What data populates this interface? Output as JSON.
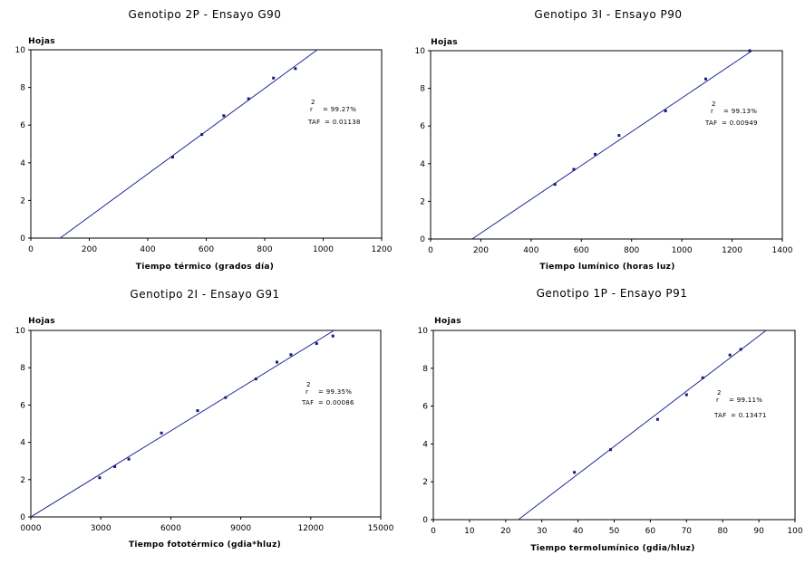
{
  "colors": {
    "line": "#1f2a9a",
    "point": "#1a1a6e",
    "frame": "#000000"
  },
  "chart_data": [
    {
      "type": "scatter",
      "title": "Genotipo 2P - Ensayo G90",
      "xlabel": "Tiempo térmico (grados día)",
      "ylabel": "Hojas",
      "xlim": [
        0,
        1200
      ],
      "ylim": [
        0,
        10
      ],
      "xticks": [
        0,
        200,
        400,
        600,
        800,
        1000,
        1200
      ],
      "xtick_labels": [
        "0",
        "200",
        "400",
        "600",
        "800",
        "1000",
        "1200"
      ],
      "yticks": [
        0,
        2,
        4,
        6,
        8,
        10
      ],
      "points": [
        [
          485,
          4.3
        ],
        [
          585,
          5.5
        ],
        [
          660,
          6.5
        ],
        [
          745,
          7.4
        ],
        [
          830,
          8.5
        ],
        [
          905,
          9.0
        ]
      ],
      "fit_line": [
        [
          100,
          0
        ],
        [
          980,
          10
        ]
      ],
      "r2_label": "r",
      "r2_sup": "2",
      "r2_value": "= 99.27%",
      "taf_label": "TAF",
      "taf_value": "= 0.01138",
      "grid": false
    },
    {
      "type": "scatter",
      "title": "Genotipo 3I - Ensayo P90",
      "xlabel": "Tiempo lumínico (horas luz)",
      "ylabel": "Hojas",
      "xlim": [
        0,
        1400
      ],
      "ylim": [
        0,
        10
      ],
      "xticks": [
        0,
        200,
        400,
        600,
        800,
        1000,
        1200,
        1400
      ],
      "xtick_labels": [
        "0",
        "200",
        "400",
        "600",
        "800",
        "1000",
        "1200",
        "1400"
      ],
      "yticks": [
        0,
        2,
        4,
        6,
        8,
        10
      ],
      "points": [
        [
          495,
          2.9
        ],
        [
          570,
          3.7
        ],
        [
          655,
          4.5
        ],
        [
          750,
          5.5
        ],
        [
          935,
          6.8
        ],
        [
          1095,
          8.5
        ],
        [
          1270,
          10.0
        ]
      ],
      "fit_line": [
        [
          165,
          0
        ],
        [
          1280,
          10
        ]
      ],
      "r2_label": "r",
      "r2_sup": "2",
      "r2_value": "= 99.13%",
      "taf_label": "TAF",
      "taf_value": "= 0.00949",
      "grid": false
    },
    {
      "type": "scatter",
      "title": "Genotipo 2I - Ensayo G91",
      "xlabel": "Tiempo fototérmico (gdia*hluz)",
      "ylabel": "Hojas",
      "xlim": [
        0,
        15000
      ],
      "ylim": [
        0,
        10
      ],
      "xticks": [
        0,
        3000,
        6000,
        9000,
        12000,
        15000
      ],
      "xtick_labels": [
        "0000",
        "3000",
        "6000",
        "9000",
        "12000",
        "15000"
      ],
      "yticks": [
        0,
        2,
        4,
        6,
        8,
        10
      ],
      "points": [
        [
          2950,
          2.1
        ],
        [
          3600,
          2.7
        ],
        [
          4200,
          3.1
        ],
        [
          5600,
          4.5
        ],
        [
          7150,
          5.7
        ],
        [
          8350,
          6.4
        ],
        [
          9650,
          7.4
        ],
        [
          10550,
          8.3
        ],
        [
          11150,
          8.7
        ],
        [
          12250,
          9.3
        ],
        [
          12950,
          9.7
        ]
      ],
      "fit_line": [
        [
          0,
          0
        ],
        [
          13000,
          10
        ]
      ],
      "r2_label": "r",
      "r2_sup": "2",
      "r2_value": "= 99.35%",
      "taf_label": "TAF",
      "taf_value": "= 0.00086",
      "grid": false
    },
    {
      "type": "scatter",
      "title": "Genotipo 1P - Ensayo P91",
      "xlabel": "Tiempo termolumínico (gdia/hluz)",
      "ylabel": "Hojas",
      "xlim": [
        0,
        100
      ],
      "ylim": [
        0,
        10
      ],
      "xticks": [
        0,
        10,
        20,
        30,
        40,
        50,
        60,
        70,
        80,
        90,
        100
      ],
      "xtick_labels": [
        "0",
        "10",
        "20",
        "30",
        "40",
        "50",
        "60",
        "70",
        "80",
        "90",
        "100"
      ],
      "yticks": [
        0,
        2,
        4,
        6,
        8,
        10
      ],
      "points": [
        [
          39,
          2.5
        ],
        [
          49,
          3.7
        ],
        [
          62,
          5.3
        ],
        [
          70,
          6.6
        ],
        [
          74.5,
          7.5
        ],
        [
          82,
          8.7
        ],
        [
          85,
          9.0
        ]
      ],
      "fit_line": [
        [
          23.5,
          0
        ],
        [
          92,
          10
        ]
      ],
      "r2_label": "r",
      "r2_sup": "2",
      "r2_value": "= 99.11%",
      "taf_label": "TAF",
      "taf_value": "= 0.13471",
      "grid": false
    }
  ]
}
